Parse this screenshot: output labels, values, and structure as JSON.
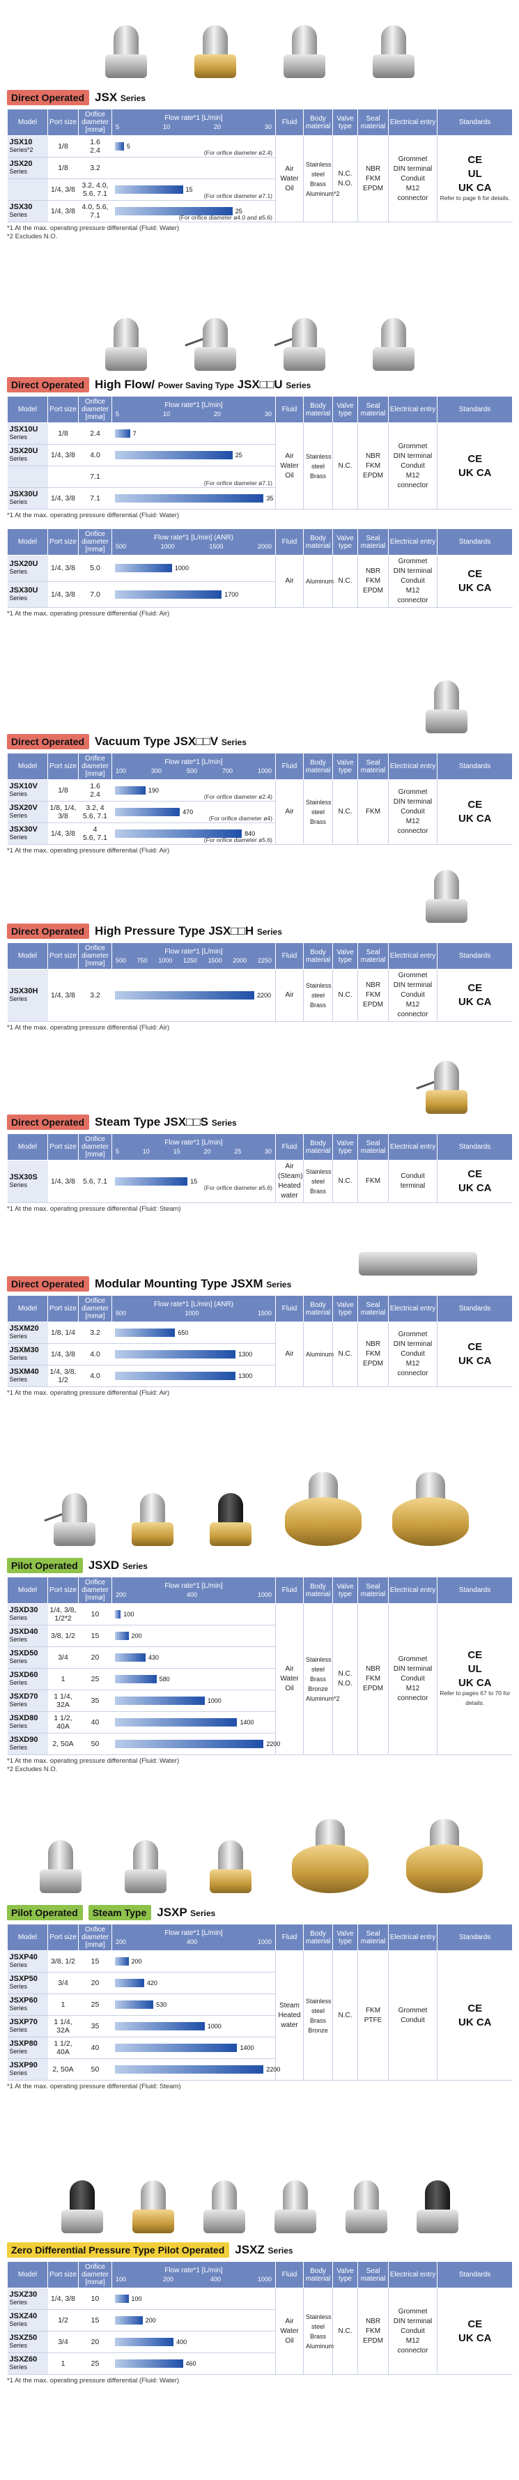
{
  "sections": {
    "jsx": {
      "tag": "Direct Operated",
      "name": "JSX",
      "series_word": "Series",
      "headers": {
        "model": "Model",
        "port": "Port size",
        "orifice": "Orifice diameter [mmø]",
        "flow": "Flow rate*1 [L/min]",
        "fluid": "Fluid",
        "body": "Body material",
        "valve": "Valve type",
        "seal": "Seal material",
        "electrical": "Electrical entry",
        "standards": "Standards"
      },
      "scale": [
        "5",
        "10",
        "20",
        "30"
      ],
      "rows": [
        {
          "model": "JSX10",
          "sub": "Series*2",
          "port": "1/8",
          "orifice": "1.6\n2.4",
          "value": "5",
          "pct": 6
        },
        {
          "model": "JSX20",
          "sub": "Series",
          "port": "1/8",
          "orifice": "3.2",
          "value": "",
          "pct": 0
        },
        {
          "model": "",
          "sub": "",
          "port": "1/4, 3/8",
          "orifice": "3.2, 4.0,\n5.6, 7.1",
          "value": "15",
          "pct": 44,
          "note": "(For orifice diameter ø7.1)"
        },
        {
          "model": "JSX30",
          "sub": "Series",
          "port": "1/4, 3/8",
          "orifice": "4.0, 5.6, 7.1",
          "value": "25",
          "pct": 76,
          "note": "(For orifice diameter ø4.0 and ø5.6)"
        }
      ],
      "note1_inline": "(For orifice diameter ø2.4)",
      "fluid": "Air\nWater\nOil",
      "body": "Stainless steel\nBrass\nAluminum*2",
      "valve": "N.C.\nN.O.",
      "seal": "NBR\nFKM\nEPDM",
      "electrical": "Grommet\nDIN terminal\nConduit\nM12 connector",
      "standards": "CE\nUL\nUK CA",
      "page_ref": "Refer to page 6 for details.",
      "notes": [
        "*1 At the max. operating pressure differential (Fluid: Water)",
        "*2 Excludes N.O."
      ]
    },
    "jsxu": {
      "tag": "Direct Operated",
      "name": "High Flow/",
      "name_small": "Power Saving Type",
      "name_code": "JSX□□U",
      "series_word": "Series",
      "scale": [
        "5",
        "10",
        "20",
        "30"
      ],
      "rows": [
        {
          "model": "JSX10U",
          "sub": "Series",
          "port": "1/8",
          "orifice": "2.4",
          "value": "7",
          "pct": 10
        },
        {
          "model": "JSX20U",
          "sub": "Series",
          "port": "1/4, 3/8",
          "orifice": "4.0",
          "value": "25",
          "pct": 76
        },
        {
          "model": "",
          "sub": "",
          "port": "",
          "orifice": "7.1",
          "value": "",
          "pct": 0,
          "note": "(For orifice diameter ø7.1)"
        },
        {
          "model": "JSX30U",
          "sub": "Series",
          "port": "1/4, 3/8",
          "orifice": "7.1",
          "value": "35",
          "pct": 96
        }
      ],
      "fluid": "Air\nWater\nOil",
      "body": "Stainless steel\nBrass",
      "valve": "N.C.",
      "seal": "NBR\nFKM\nEPDM",
      "electrical": "Grommet\nDIN terminal\nConduit\nM12 connector",
      "standards": "CE\nUK CA",
      "note": "*1 At the max. operating pressure differential (Fluid: Water)",
      "air_header": "Flow rate*1 [L/min] (ANR)",
      "air_scale": [
        "500",
        "1000",
        "1500",
        "2000"
      ],
      "air_rows": [
        {
          "model": "JSX20U",
          "sub": "Series",
          "port": "1/4, 3/8",
          "orifice": "5.0",
          "value": "1000",
          "pct": 37
        },
        {
          "model": "JSX30U",
          "sub": "Series",
          "port": "1/4, 3/8",
          "orifice": "7.0",
          "value": "1700",
          "pct": 69
        }
      ],
      "air_fluid": "Air",
      "air_body": "Aluminum",
      "air_valve": "N.C.",
      "air_seal": "NBR\nFKM\nEPDM",
      "air_electrical": "Grommet\nDIN terminal\nConduit\nM12 connector",
      "air_standards": "CE\nUK CA",
      "air_note": "*1 At the max. operating pressure differential (Fluid: Air)"
    },
    "jsxv": {
      "tag": "Direct Operated",
      "name": "Vacuum Type",
      "name_code": "JSX□□V",
      "series_word": "Series",
      "header": "Flow rate*1 [L/min]",
      "scale": [
        "100",
        "300",
        "500",
        "700",
        "1000"
      ],
      "rows": [
        {
          "model": "JSX10V",
          "sub": "Series",
          "port": "1/8",
          "orifice": "1.6\n2.4",
          "value": "190",
          "pct": 20,
          "note": "(For orifice diameter ø2.4)"
        },
        {
          "model": "JSX20V",
          "sub": "Series",
          "port": "1/8, 1/4,\n3/8",
          "orifice": "3.2, 4\n5.6, 7.1",
          "value": "470",
          "pct": 42,
          "note": "(For orifice diameter ø4)"
        },
        {
          "model": "JSX30V",
          "sub": "Series",
          "port": "1/4, 3/8",
          "orifice": "4\n5.6, 7.1",
          "value": "840",
          "pct": 82,
          "note": "(For orifice diameter ø5.6)"
        }
      ],
      "fluid": "Air",
      "body": "Stainless steel\nBrass",
      "valve": "N.C.",
      "seal": "FKM",
      "electrical": "Grommet\nDIN terminal\nConduit\nM12 connector",
      "standards": "CE\nUK CA",
      "note": "*1 At the max. operating pressure differential (Fluid: Air)"
    },
    "jsxh": {
      "tag": "Direct Operated",
      "name": "High Pressure Type",
      "name_code": "JSX□□H",
      "series_word": "Series",
      "header": "Flow rate*1 [L/min]",
      "scale": [
        "500",
        "750",
        "1000",
        "1250",
        "1500",
        "2000",
        "2250"
      ],
      "rows": [
        {
          "model": "JSX30H",
          "sub": "Series",
          "port": "1/4, 3/8",
          "orifice": "3.2",
          "value": "2200",
          "pct": 90
        }
      ],
      "fluid": "Air",
      "body": "Stainless steel\nBrass",
      "valve": "N.C.",
      "seal": "NBR\nFKM\nEPDM",
      "electrical": "Grommet\nDIN terminal\nConduit\nM12 connector",
      "standards": "CE\nUK CA",
      "note": "*1 At the max. operating pressure differential (Fluid: Air)"
    },
    "jsxs": {
      "tag": "Direct Operated",
      "name": "Steam Type",
      "name_code": "JSX□□S",
      "series_word": "Series",
      "header": "Flow rate*1 [L/min]",
      "scale": [
        "5",
        "10",
        "15",
        "20",
        "25",
        "30"
      ],
      "rows": [
        {
          "model": "JSX30S",
          "sub": "Series",
          "port": "1/4, 3/8",
          "orifice": "5.6, 7.1",
          "value": "15",
          "pct": 47,
          "note": "(For orifice diameter ø5.6)"
        }
      ],
      "fluid": "Air\n(Steam)\nHeated\nwater",
      "body": "Stainless steel\nBrass",
      "valve": "N.C.",
      "seal": "FKM",
      "electrical": "Conduit\nterminal",
      "standards": "CE\nUK CA",
      "note": "*1 At the max. operating pressure differential (Fluid: Steam)"
    },
    "jsxm": {
      "tag": "Direct Operated",
      "name": "Modular Mounting Type",
      "name_code": "JSXM",
      "series_word": "Series",
      "header": "Flow rate*1 [L/min] (ANR)",
      "scale": [
        "500",
        "1000",
        "1500"
      ],
      "rows": [
        {
          "model": "JSXM20",
          "sub": "Series",
          "port": "1/8, 1/4",
          "orifice": "3.2",
          "value": "650",
          "pct": 39
        },
        {
          "model": "JSXM30",
          "sub": "Series",
          "port": "1/4, 3/8",
          "orifice": "4.0",
          "value": "1300",
          "pct": 78
        },
        {
          "model": "JSXM40",
          "sub": "Series",
          "port": "1/4, 3/8,\n1/2",
          "orifice": "4.0",
          "value": "1300",
          "pct": 78
        }
      ],
      "fluid": "Air",
      "body": "Aluminum",
      "valve": "N.C.",
      "seal": "NBR\nFKM\nEPDM",
      "electrical": "Grommet\nDIN terminal\nConduit\nM12 connector",
      "standards": "CE\nUK CA",
      "note": "*1 At the max. operating pressure differential (Fluid: Air)"
    },
    "jsxd": {
      "tag": "Pilot Operated",
      "name": "JSXD",
      "series_word": "Series",
      "header": "Flow rate*1 [L/min]",
      "scale": [
        "200",
        "400",
        "1000"
      ],
      "rows": [
        {
          "model": "JSXD30",
          "sub": "Series",
          "port": "1/4, 3/8,\n1/2*2",
          "orifice": "10",
          "value": "100",
          "pct": 4
        },
        {
          "model": "JSXD40",
          "sub": "Series",
          "port": "3/8, 1/2",
          "orifice": "15",
          "value": "200",
          "pct": 9
        },
        {
          "model": "JSXD50",
          "sub": "Series",
          "port": "3/4",
          "orifice": "20",
          "value": "430",
          "pct": 20
        },
        {
          "model": "JSXD60",
          "sub": "Series",
          "port": "1",
          "orifice": "25",
          "value": "580",
          "pct": 27
        },
        {
          "model": "JSXD70",
          "sub": "Series",
          "port": "1 1/4, 32A",
          "orifice": "35",
          "value": "1000",
          "pct": 58
        },
        {
          "model": "JSXD80",
          "sub": "Series",
          "port": "1 1/2, 40A",
          "orifice": "40",
          "value": "1400",
          "pct": 79
        },
        {
          "model": "JSXD90",
          "sub": "Series",
          "port": "2, 50A",
          "orifice": "50",
          "value": "2200",
          "pct": 96
        }
      ],
      "fluid": "Air\nWater\nOil",
      "body": "Stainless steel\nBrass\nBronze\nAluminum*2",
      "valve": "N.C.\nN.O.",
      "seal": "NBR\nFKM\nEPDM",
      "electrical": "Grommet\nDIN terminal\nConduit\nM12 connector",
      "standards": "CE\nUL\nUK CA",
      "page_ref": "Refer to pages 67 to 70 for details.",
      "notes": [
        "*1 At the max. operating pressure differential (Fluid: Water)",
        "*2 Excludes N.O."
      ]
    },
    "jsxp": {
      "tag": "Pilot Operated",
      "tag2": "Steam Type",
      "name": "JSXP",
      "series_word": "Series",
      "header": "Flow rate*1 [L/min]",
      "scale": [
        "200",
        "400",
        "1000"
      ],
      "rows": [
        {
          "model": "JSXP40",
          "sub": "Series",
          "port": "3/8, 1/2",
          "orifice": "15",
          "value": "200",
          "pct": 9
        },
        {
          "model": "JSXP50",
          "sub": "Series",
          "port": "3/4",
          "orifice": "20",
          "value": "420",
          "pct": 19
        },
        {
          "model": "JSXP60",
          "sub": "Series",
          "port": "1",
          "orifice": "25",
          "value": "530",
          "pct": 25
        },
        {
          "model": "JSXP70",
          "sub": "Series",
          "port": "1 1/4, 32A",
          "orifice": "35",
          "value": "1000",
          "pct": 58
        },
        {
          "model": "JSXP80",
          "sub": "Series",
          "port": "1 1/2, 40A",
          "orifice": "40",
          "value": "1400",
          "pct": 79
        },
        {
          "model": "JSXP90",
          "sub": "Series",
          "port": "2, 50A",
          "orifice": "50",
          "value": "2200",
          "pct": 96
        }
      ],
      "fluid": "Steam\nHeated\nwater",
      "body": "Stainless steel\nBrass\nBronze",
      "valve": "N.C.",
      "seal": "FKM\nPTFE",
      "electrical": "Grommet\nConduit",
      "standards": "CE\nUK CA",
      "note": "*1 At the max. operating pressure differential (Fluid: Steam)"
    },
    "jsxz": {
      "tag": "Zero Differential Pressure Type Pilot Operated",
      "name": "JSXZ",
      "series_word": "Series",
      "header": "Flow rate*1 [L/min]",
      "scale": [
        "100",
        "200",
        "400",
        "1000"
      ],
      "rows": [
        {
          "model": "JSXZ30",
          "sub": "Series",
          "port": "1/4, 3/8",
          "orifice": "10",
          "value": "100",
          "pct": 9
        },
        {
          "model": "JSXZ40",
          "sub": "Series",
          "port": "1/2",
          "orifice": "15",
          "value": "200",
          "pct": 18
        },
        {
          "model": "JSXZ50",
          "sub": "Series",
          "port": "3/4",
          "orifice": "20",
          "value": "400",
          "pct": 38
        },
        {
          "model": "JSXZ60",
          "sub": "Series",
          "port": "1",
          "orifice": "25",
          "value": "460",
          "pct": 44
        }
      ],
      "fluid": "Air\nWater\nOil",
      "body": "Stainless steel\nBrass\nAluminum",
      "valve": "N.C.",
      "seal": "NBR\nFKM\nEPDM",
      "electrical": "Grommet\nDIN terminal\nConduit\nM12 connector",
      "standards": "CE\nUK CA",
      "note": "*1 At the max. operating pressure differential (Fluid: Water)"
    }
  }
}
